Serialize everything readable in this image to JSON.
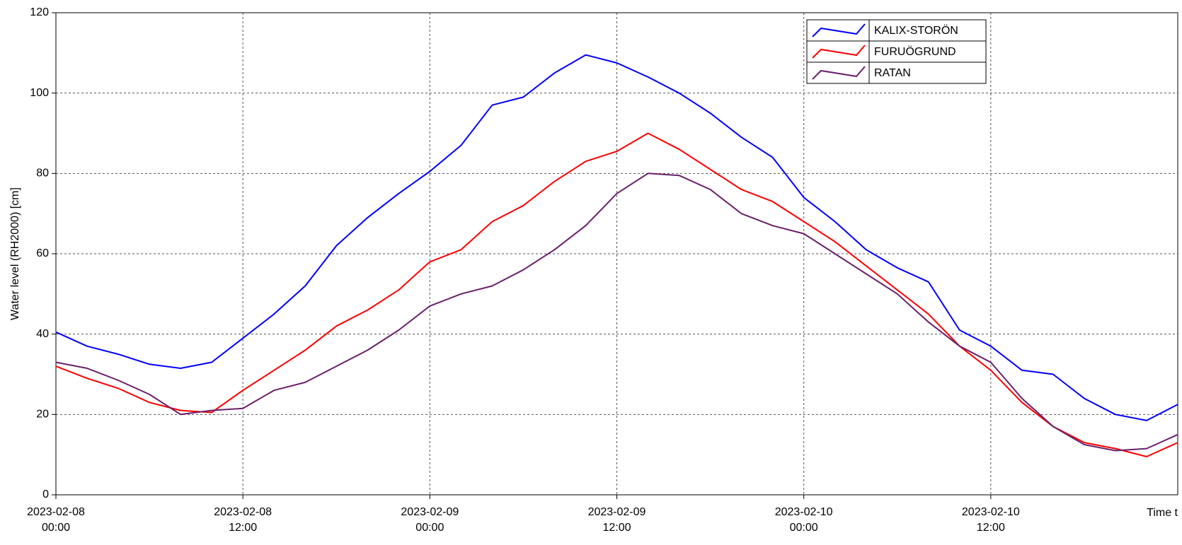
{
  "chart_data": {
    "type": "line",
    "y_label": "Water level (RH2000) [cm]",
    "x_label": "Time t",
    "x": [
      0,
      2,
      4,
      6,
      8,
      10,
      12,
      14,
      16,
      18,
      20,
      22,
      24,
      26,
      28,
      30,
      32,
      34,
      36,
      38,
      40,
      42,
      44,
      46,
      48,
      50,
      52,
      54,
      56,
      58,
      60,
      62,
      64,
      66,
      68,
      70,
      72
    ],
    "xlim": [
      0,
      72
    ],
    "xticks": [
      {
        "value": 0,
        "label": "2023-02-08\n00:00"
      },
      {
        "value": 12,
        "label": "2023-02-08\n12:00"
      },
      {
        "value": 24,
        "label": "2023-02-09\n00:00"
      },
      {
        "value": 36,
        "label": "2023-02-09\n12:00"
      },
      {
        "value": 48,
        "label": "2023-02-10\n00:00"
      },
      {
        "value": 60,
        "label": "2023-02-10\n12:00"
      }
    ],
    "ylim": [
      0,
      120
    ],
    "yticks": [
      0,
      20,
      40,
      60,
      80,
      100,
      120
    ],
    "grid": true,
    "legend": "top-right",
    "series": [
      {
        "name": "KALIX-STORÖN",
        "color": "#0000ff",
        "values": [
          40.5,
          37,
          35,
          32.5,
          31.5,
          33,
          39,
          45,
          52,
          62,
          69,
          75,
          80.5,
          87,
          97,
          99,
          105,
          109.5,
          107.5,
          104,
          100,
          95,
          89,
          84,
          74,
          68,
          61,
          56.5,
          53,
          41,
          37,
          31,
          30,
          24,
          20,
          18.5,
          22.5
        ]
      },
      {
        "name": "FURUÖGRUND",
        "color": "#ff0000",
        "values": [
          32,
          29,
          26.5,
          23,
          21,
          20.5,
          26,
          31,
          36,
          42,
          46,
          51,
          58,
          61,
          68,
          72,
          78,
          83,
          85.5,
          90,
          86,
          81,
          76,
          73,
          68,
          63,
          57,
          51,
          45,
          37,
          31,
          23,
          17,
          13,
          11.5,
          9.5,
          13
        ]
      },
      {
        "name": "RATAN",
        "color": "#6b1f6b",
        "values": [
          33,
          31.5,
          28.5,
          25,
          20,
          21,
          21.5,
          26,
          28,
          32,
          36,
          41,
          47,
          50,
          52,
          56,
          61,
          67,
          75,
          80,
          79.5,
          76,
          70,
          67,
          65,
          60,
          55,
          50,
          43,
          37,
          33,
          24,
          17,
          12.5,
          11,
          11.5,
          15
        ]
      }
    ]
  }
}
